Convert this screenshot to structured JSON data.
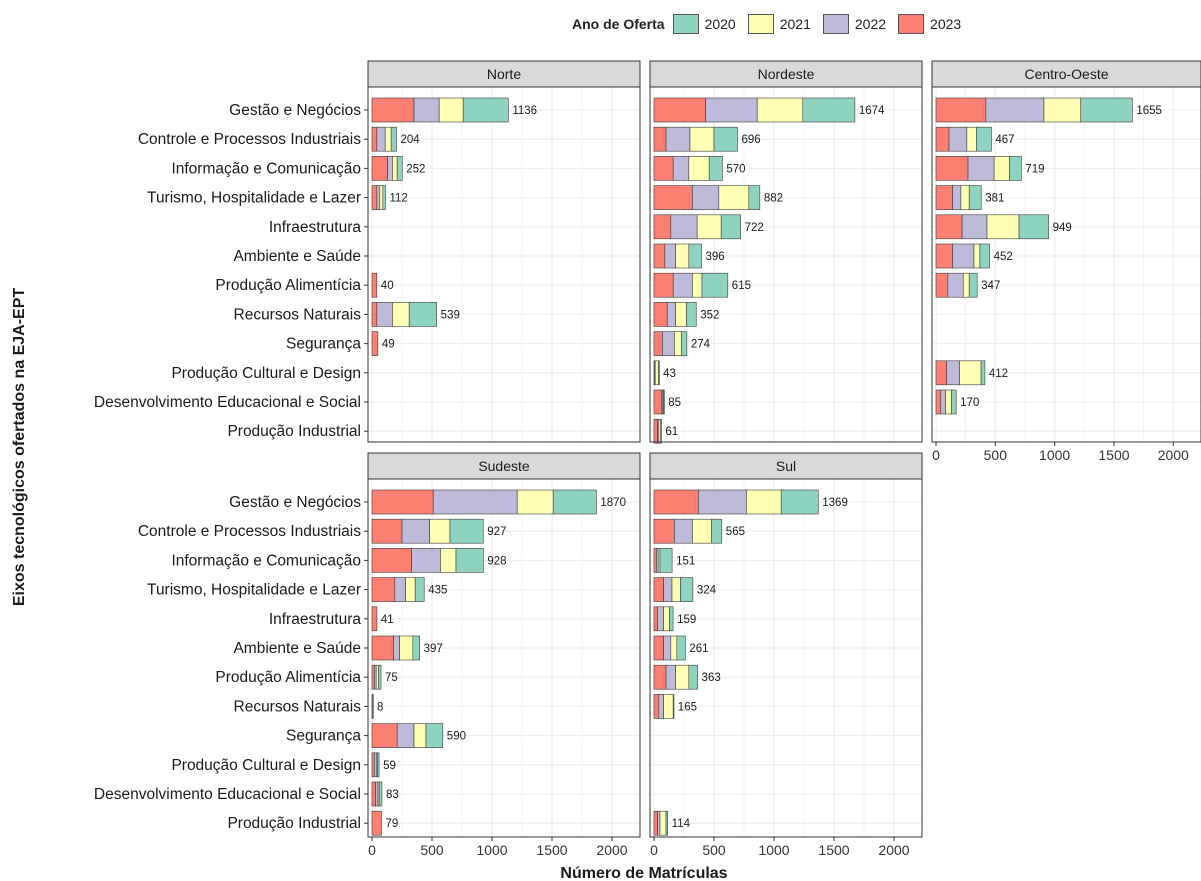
{
  "legend": {
    "title": "Ano de Oferta",
    "items": [
      {
        "label": "2020",
        "color": "#8fd4c1"
      },
      {
        "label": "2021",
        "color": "#ffffb3"
      },
      {
        "label": "2022",
        "color": "#bebada"
      },
      {
        "label": "2023",
        "color": "#fb8072"
      }
    ]
  },
  "chart_data": {
    "type": "bar",
    "orientation": "horizontal",
    "stacked": true,
    "xlabel": "Número de Matrículas",
    "ylabel": "Eixos tecnológicos ofertados na EJA-EPT",
    "xlim": [
      0,
      2200
    ],
    "xticks": [
      0,
      500,
      1000,
      1500,
      2000
    ],
    "grid": true,
    "legend_position": "top",
    "categories": [
      "Gestão e Negócios",
      "Controle e Processos Industriais",
      "Informação e Comunicação",
      "Turismo, Hospitalidade e Lazer",
      "Infraestrutura",
      "Ambiente e Saúde",
      "Produção Alimentícia",
      "Recursos Naturais",
      "Segurança",
      "Produção Cultural e Design",
      "Desenvolvimento Educacional e Social",
      "Produção Industrial"
    ],
    "stack_order": [
      "2023",
      "2022",
      "2021",
      "2020"
    ],
    "panels": [
      {
        "name": "Norte",
        "bars": [
          {
            "2023": 350,
            "2022": 210,
            "2021": 200,
            "2020": 376,
            "total": 1136
          },
          {
            "2023": 40,
            "2022": 70,
            "2021": 50,
            "2020": 44,
            "total": 204
          },
          {
            "2023": 130,
            "2022": 40,
            "2021": 40,
            "2020": 42,
            "total": 252
          },
          {
            "2023": 40,
            "2022": 25,
            "2021": 25,
            "2020": 22,
            "total": 112
          },
          null,
          null,
          {
            "2023": 40,
            "2022": 0,
            "2021": 0,
            "2020": 0,
            "total": 40
          },
          {
            "2023": 40,
            "2022": 130,
            "2021": 140,
            "2020": 229,
            "total": 539
          },
          {
            "2023": 49,
            "2022": 0,
            "2021": 0,
            "2020": 0,
            "total": 49
          },
          null,
          null,
          null
        ]
      },
      {
        "name": "Nordeste",
        "bars": [
          {
            "2023": 430,
            "2022": 430,
            "2021": 380,
            "2020": 434,
            "total": 1674
          },
          {
            "2023": 100,
            "2022": 200,
            "2021": 200,
            "2020": 196,
            "total": 696
          },
          {
            "2023": 160,
            "2022": 130,
            "2021": 170,
            "2020": 110,
            "total": 570
          },
          {
            "2023": 320,
            "2022": 220,
            "2021": 250,
            "2020": 92,
            "total": 882
          },
          {
            "2023": 140,
            "2022": 220,
            "2021": 200,
            "2020": 162,
            "total": 722
          },
          {
            "2023": 90,
            "2022": 90,
            "2021": 110,
            "2020": 106,
            "total": 396
          },
          {
            "2023": 160,
            "2022": 160,
            "2021": 80,
            "2020": 215,
            "total": 615
          },
          {
            "2023": 110,
            "2022": 70,
            "2021": 90,
            "2020": 82,
            "total": 352
          },
          {
            "2023": 70,
            "2022": 100,
            "2021": 60,
            "2020": 44,
            "total": 274
          },
          {
            "2023": 5,
            "2022": 5,
            "2021": 28,
            "2020": 5,
            "total": 43
          },
          {
            "2023": 65,
            "2022": 10,
            "2021": 5,
            "2020": 5,
            "total": 85
          },
          {
            "2023": 30,
            "2022": 10,
            "2021": 16,
            "2020": 5,
            "total": 61
          }
        ]
      },
      {
        "name": "Centro-Oeste",
        "bars": [
          {
            "2023": 420,
            "2022": 490,
            "2021": 310,
            "2020": 435,
            "total": 1655
          },
          {
            "2023": 110,
            "2022": 150,
            "2021": 80,
            "2020": 127,
            "total": 467
          },
          {
            "2023": 270,
            "2022": 220,
            "2021": 130,
            "2020": 99,
            "total": 719
          },
          {
            "2023": 140,
            "2022": 70,
            "2021": 70,
            "2020": 101,
            "total": 381
          },
          {
            "2023": 220,
            "2022": 210,
            "2021": 270,
            "2020": 249,
            "total": 949
          },
          {
            "2023": 140,
            "2022": 180,
            "2021": 50,
            "2020": 82,
            "total": 452
          },
          {
            "2023": 100,
            "2022": 130,
            "2021": 50,
            "2020": 67,
            "total": 347
          },
          null,
          null,
          {
            "2023": 90,
            "2022": 110,
            "2021": 180,
            "2020": 32,
            "total": 412
          },
          {
            "2023": 40,
            "2022": 40,
            "2021": 50,
            "2020": 40,
            "total": 170
          },
          null
        ]
      },
      {
        "name": "Sudeste",
        "bars": [
          {
            "2023": 510,
            "2022": 700,
            "2021": 300,
            "2020": 360,
            "total": 1870
          },
          {
            "2023": 250,
            "2022": 230,
            "2021": 170,
            "2020": 277,
            "total": 927
          },
          {
            "2023": 330,
            "2022": 240,
            "2021": 130,
            "2020": 228,
            "total": 928
          },
          {
            "2023": 190,
            "2022": 90,
            "2021": 80,
            "2020": 75,
            "total": 435
          },
          {
            "2023": 41,
            "2022": 0,
            "2021": 0,
            "2020": 0,
            "total": 41
          },
          {
            "2023": 180,
            "2022": 50,
            "2021": 110,
            "2020": 57,
            "total": 397
          },
          {
            "2023": 20,
            "2022": 15,
            "2021": 20,
            "2020": 20,
            "total": 75
          },
          {
            "2023": 4,
            "2022": 0,
            "2021": 0,
            "2020": 4,
            "total": 8
          },
          {
            "2023": 210,
            "2022": 140,
            "2021": 100,
            "2020": 140,
            "total": 590
          },
          {
            "2023": 20,
            "2022": 20,
            "2021": 5,
            "2020": 14,
            "total": 59
          },
          {
            "2023": 30,
            "2022": 20,
            "2021": 10,
            "2020": 23,
            "total": 83
          },
          {
            "2023": 79,
            "2022": 0,
            "2021": 0,
            "2020": 0,
            "total": 79
          }
        ]
      },
      {
        "name": "Sul",
        "bars": [
          {
            "2023": 370,
            "2022": 400,
            "2021": 290,
            "2020": 309,
            "total": 1369
          },
          {
            "2023": 170,
            "2022": 150,
            "2021": 160,
            "2020": 85,
            "total": 565
          },
          {
            "2023": 20,
            "2022": 15,
            "2021": 15,
            "2020": 101,
            "total": 151
          },
          {
            "2023": 80,
            "2022": 70,
            "2021": 70,
            "2020": 104,
            "total": 324
          },
          {
            "2023": 30,
            "2022": 50,
            "2021": 50,
            "2020": 29,
            "total": 159
          },
          {
            "2023": 80,
            "2022": 60,
            "2021": 50,
            "2020": 71,
            "total": 261
          },
          {
            "2023": 100,
            "2022": 80,
            "2021": 110,
            "2020": 73,
            "total": 363
          },
          {
            "2023": 40,
            "2022": 40,
            "2021": 80,
            "2020": 5,
            "total": 165
          },
          null,
          null,
          null,
          {
            "2023": 30,
            "2022": 20,
            "2021": 50,
            "2020": 14,
            "total": 114
          }
        ]
      }
    ]
  }
}
